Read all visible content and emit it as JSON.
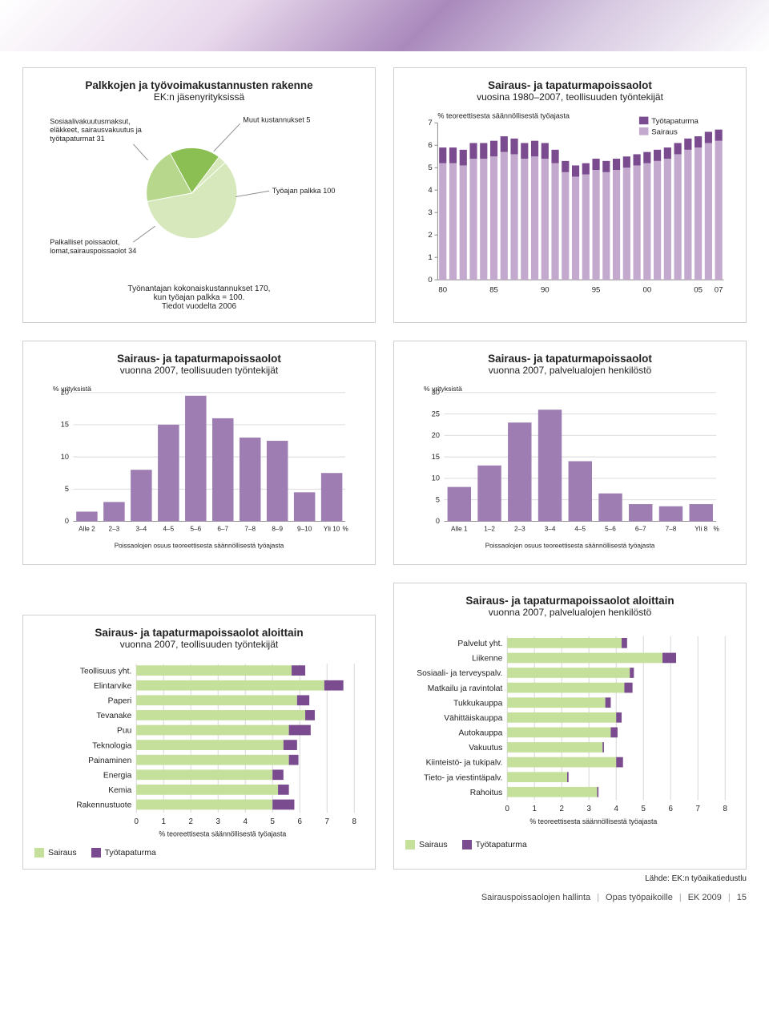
{
  "colors": {
    "sairaus": "#c2a9cd",
    "tyotapaturma": "#7a4c8f",
    "pie_dark": "#8bbf53",
    "pie_mid": "#b7d88c",
    "pie_light": "#d7e9bc",
    "hbar": "#c5e09b",
    "hbar_dark": "#7a4c8f",
    "grid": "#d6d6d6",
    "text": "#222222"
  },
  "pie_panel": {
    "title": "Palkkojen ja työvoimakustannusten rakenne",
    "subtitle": "EK:n jäsenyrityksissä",
    "labels": {
      "a": "Sosiaalivakuutusmaksut,\neläkkeet, sairausvakuutus ja\ntyötapaturmat 31",
      "b": "Muut kustannukset 5",
      "c": "Työajan palkka 100",
      "d": "Palkalliset poissaolot,\nlomat,sairauspoissaolot 34"
    },
    "slices": [
      {
        "label_key": "a",
        "value": 31,
        "color": "#8bbf53"
      },
      {
        "label_key": "b",
        "value": 5,
        "color": "#d7e9bc"
      },
      {
        "label_key": "c",
        "value": 100,
        "color": "#d7e9bc"
      },
      {
        "label_key": "d",
        "value": 34,
        "color": "#b7d88c"
      }
    ],
    "caption1": "Työnantajan kokonaiskustannukset  170,",
    "caption2": "kun työajan palkka = 100.",
    "caption3": "Tiedot vuodelta 2006"
  },
  "timeseries": {
    "title": "Sairaus- ja tapaturmapoissaolot",
    "subtitle": "vuosina 1980–2007, teollisuuden työntekijät",
    "yaxis_label": "% teoreettisesta säännöllisestä työajasta",
    "legend": {
      "top": "Työtapaturma",
      "bottom": "Sairaus"
    },
    "ylim": [
      0,
      7
    ],
    "ytick_step": 1,
    "xticks": [
      "80",
      "85",
      "90",
      "95",
      "00",
      "05",
      "07"
    ],
    "years": [
      1980,
      1981,
      1982,
      1983,
      1984,
      1985,
      1986,
      1987,
      1988,
      1989,
      1990,
      1991,
      1992,
      1993,
      1994,
      1995,
      1996,
      1997,
      1998,
      1999,
      2000,
      2001,
      2002,
      2003,
      2004,
      2005,
      2006,
      2007
    ],
    "sairaus": [
      5.2,
      5.2,
      5.1,
      5.4,
      5.4,
      5.5,
      5.7,
      5.6,
      5.4,
      5.5,
      5.4,
      5.2,
      4.8,
      4.6,
      4.7,
      4.9,
      4.8,
      4.9,
      5.0,
      5.1,
      5.2,
      5.3,
      5.4,
      5.6,
      5.8,
      5.9,
      6.1,
      6.2
    ],
    "tyotapaturma": [
      0.7,
      0.7,
      0.7,
      0.7,
      0.7,
      0.7,
      0.7,
      0.7,
      0.7,
      0.7,
      0.7,
      0.6,
      0.5,
      0.5,
      0.5,
      0.5,
      0.5,
      0.5,
      0.5,
      0.5,
      0.5,
      0.5,
      0.5,
      0.5,
      0.5,
      0.5,
      0.5,
      0.5
    ]
  },
  "hist_industry": {
    "title": "Sairaus- ja tapaturmapoissaolot",
    "subtitle": "vuonna 2007, teollisuuden työntekijät",
    "yaxis_label": "%  yrityksistä",
    "xaxis_label": "Poissaolojen osuus teoreettisesta säännöllisestä työajasta",
    "categories": [
      "Alle 2",
      "2–3",
      "3–4",
      "4–5",
      "5–6",
      "6–7",
      "7–8",
      "8–9",
      "9–10",
      "Yli 10"
    ],
    "unit": "%",
    "values": [
      1.5,
      3,
      8,
      15,
      19.5,
      16,
      13,
      12.5,
      4.5,
      7.5
    ],
    "ylim": [
      0,
      20
    ],
    "ytick_step": 5,
    "bar_color": "#9d7db2"
  },
  "hist_service": {
    "title": "Sairaus- ja tapaturmapoissaolot",
    "subtitle": "vuonna 2007, palvelualojen henkilöstö",
    "yaxis_label": "%  yrityksistä",
    "xaxis_label": "Poissaolojen osuus teoreettisesta säännöllisestä työajasta",
    "categories": [
      "Alle 1",
      "1–2",
      "2–3",
      "3–4",
      "4–5",
      "5–6",
      "6–7",
      "7–8",
      "Yli 8"
    ],
    "unit": "%",
    "values": [
      8,
      13,
      23,
      26,
      14,
      6.5,
      4,
      3.5,
      4
    ],
    "ylim": [
      0,
      30
    ],
    "ytick_step": 5,
    "bar_color": "#9d7db2"
  },
  "sector_industry": {
    "title": "Sairaus- ja tapaturmapoissaolot aloittain",
    "subtitle": "vuonna 2007, teollisuuden työntekijät",
    "xaxis_label": "% teoreettisesta säännöllisestä työajasta",
    "xlim": [
      0,
      8
    ],
    "xtick_step": 1,
    "rows": [
      {
        "label": "Teollisuus yht.",
        "sairaus": 5.7,
        "tapaturma": 0.5
      },
      {
        "label": "Elintarvike",
        "sairaus": 6.9,
        "tapaturma": 0.7
      },
      {
        "label": "Paperi",
        "sairaus": 5.9,
        "tapaturma": 0.45
      },
      {
        "label": "Tevanake",
        "sairaus": 6.2,
        "tapaturma": 0.35
      },
      {
        "label": "Puu",
        "sairaus": 5.6,
        "tapaturma": 0.8
      },
      {
        "label": "Teknologia",
        "sairaus": 5.4,
        "tapaturma": 0.5
      },
      {
        "label": "Painaminen",
        "sairaus": 5.6,
        "tapaturma": 0.35
      },
      {
        "label": "Energia",
        "sairaus": 5.0,
        "tapaturma": 0.4
      },
      {
        "label": "Kemia",
        "sairaus": 5.2,
        "tapaturma": 0.4
      },
      {
        "label": "Rakennustuote",
        "sairaus": 5.0,
        "tapaturma": 0.8
      }
    ],
    "legend": {
      "sairaus": "Sairaus",
      "tapaturma": "Työtapaturma"
    }
  },
  "sector_service": {
    "title": "Sairaus- ja tapaturmapoissaolot aloittain",
    "subtitle": "vuonna 2007, palvelualojen henkilöstö",
    "xaxis_label": "% teoreettisesta säännöllisestä työajasta",
    "xlim": [
      0,
      8
    ],
    "xtick_step": 1,
    "rows": [
      {
        "label": "Palvelut yht.",
        "sairaus": 4.2,
        "tapaturma": 0.2
      },
      {
        "label": "Liikenne",
        "sairaus": 5.7,
        "tapaturma": 0.5
      },
      {
        "label": "Sosiaali- ja terveyspalv.",
        "sairaus": 4.5,
        "tapaturma": 0.15
      },
      {
        "label": "Matkailu ja ravintolat",
        "sairaus": 4.3,
        "tapaturma": 0.3
      },
      {
        "label": "Tukkukauppa",
        "sairaus": 3.6,
        "tapaturma": 0.2
      },
      {
        "label": "Vähittäiskauppa",
        "sairaus": 4.0,
        "tapaturma": 0.2
      },
      {
        "label": "Autokauppa",
        "sairaus": 3.8,
        "tapaturma": 0.25
      },
      {
        "label": "Vakuutus",
        "sairaus": 3.5,
        "tapaturma": 0.05
      },
      {
        "label": "Kiinteistö- ja tukipalv.",
        "sairaus": 4.0,
        "tapaturma": 0.25
      },
      {
        "label": "Tieto- ja viestintäpalv.",
        "sairaus": 2.2,
        "tapaturma": 0.05
      },
      {
        "label": "Rahoitus",
        "sairaus": 3.3,
        "tapaturma": 0.05
      }
    ],
    "legend": {
      "sairaus": "Sairaus",
      "tapaturma": "Työtapaturma"
    }
  },
  "source_line": "Lähde: EK:n työaikatiedustlu",
  "footer": {
    "a": "Sairauspoissaolojen hallinta",
    "b": "Opas työpaikoille",
    "c": "EK 2009",
    "page": "15"
  }
}
